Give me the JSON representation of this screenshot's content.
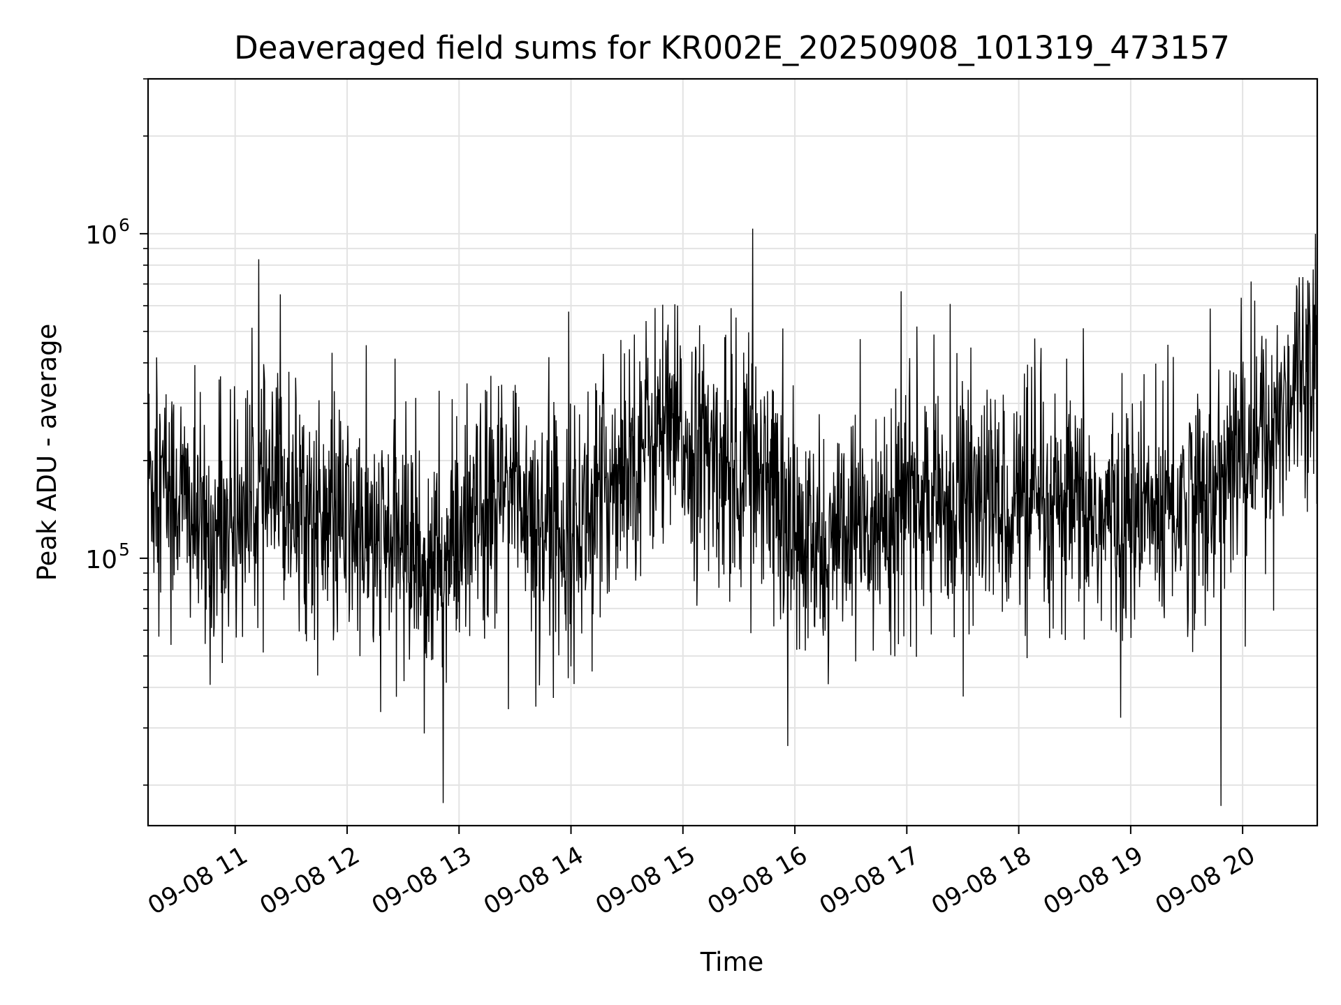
{
  "chart_data": {
    "type": "line",
    "title": "Deaveraged field sums for KR002E_20250908_101319_473157",
    "xlabel": "Time",
    "ylabel": "Peak ADU - average",
    "y_scale": "log",
    "ylim": [
      15000,
      3000000
    ],
    "xlim": [
      "2025-09-08 10:13:19",
      "2025-09-08 20:40:00"
    ],
    "grid": true,
    "x_ticks": [
      {
        "value": "2025-09-08 11:00",
        "label": "09-08 11"
      },
      {
        "value": "2025-09-08 12:00",
        "label": "09-08 12"
      },
      {
        "value": "2025-09-08 13:00",
        "label": "09-08 13"
      },
      {
        "value": "2025-09-08 14:00",
        "label": "09-08 14"
      },
      {
        "value": "2025-09-08 15:00",
        "label": "09-08 15"
      },
      {
        "value": "2025-09-08 16:00",
        "label": "09-08 16"
      },
      {
        "value": "2025-09-08 17:00",
        "label": "09-08 17"
      },
      {
        "value": "2025-09-08 18:00",
        "label": "09-08 18"
      },
      {
        "value": "2025-09-08 19:00",
        "label": "09-08 19"
      },
      {
        "value": "2025-09-08 20:00",
        "label": "09-08 20"
      }
    ],
    "y_ticks": [
      {
        "value": 100000,
        "base": "10",
        "exp": "5"
      },
      {
        "value": 1000000,
        "base": "10",
        "exp": "6"
      }
    ],
    "series_color": "#000000",
    "series": [
      {
        "x": [
          "2025-09-08 10:13",
          "2025-09-08 10:30",
          "2025-09-08 10:45",
          "2025-09-08 11:00",
          "2025-09-08 11:15",
          "2025-09-08 11:30",
          "2025-09-08 11:45",
          "2025-09-08 12:00",
          "2025-09-08 12:15",
          "2025-09-08 12:30",
          "2025-09-08 12:45",
          "2025-09-08 13:00",
          "2025-09-08 13:15",
          "2025-09-08 13:30",
          "2025-09-08 13:45",
          "2025-09-08 14:00",
          "2025-09-08 14:15",
          "2025-09-08 14:30",
          "2025-09-08 14:45",
          "2025-09-08 15:00",
          "2025-09-08 15:15",
          "2025-09-08 15:30",
          "2025-09-08 15:45",
          "2025-09-08 16:00",
          "2025-09-08 16:15",
          "2025-09-08 16:30",
          "2025-09-08 16:45",
          "2025-09-08 17:00",
          "2025-09-08 17:15",
          "2025-09-08 17:30",
          "2025-09-08 17:45",
          "2025-09-08 18:00",
          "2025-09-08 18:15",
          "2025-09-08 18:30",
          "2025-09-08 18:45",
          "2025-09-08 19:00",
          "2025-09-08 19:15",
          "2025-09-08 19:30",
          "2025-09-08 19:45",
          "2025-09-08 20:00",
          "2025-09-08 20:15",
          "2025-09-08 20:30",
          "2025-09-08 20:40"
        ],
        "values": [
          180000,
          160000,
          110000,
          140000,
          150000,
          160000,
          130000,
          125000,
          110000,
          115000,
          90000,
          105000,
          140000,
          170000,
          130000,
          120000,
          150000,
          210000,
          240000,
          230000,
          200000,
          190000,
          200000,
          110000,
          100000,
          110000,
          130000,
          160000,
          140000,
          150000,
          145000,
          150000,
          130000,
          140000,
          130000,
          130000,
          140000,
          150000,
          150000,
          220000,
          240000,
          400000,
          450000
        ]
      }
    ]
  }
}
